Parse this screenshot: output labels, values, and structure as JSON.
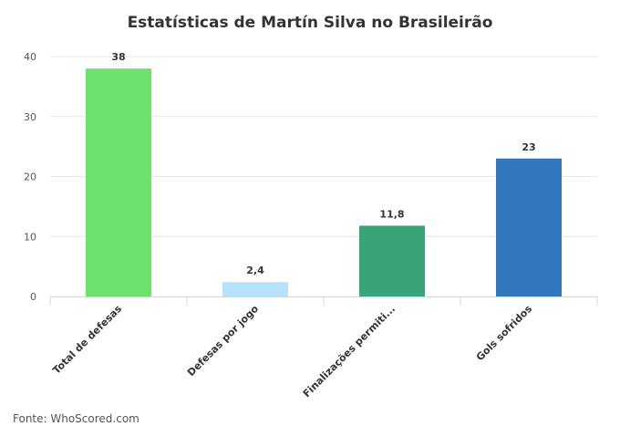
{
  "chart_data": {
    "type": "bar",
    "title": "Estatísticas de Martín Silva no Brasileirão",
    "xlabel": "",
    "ylabel": "",
    "categories": [
      "Total de defesas",
      "Defesas por jogo",
      "Finalizações permiti...",
      "Gols sofridos"
    ],
    "values": [
      38,
      2.4,
      11.8,
      23
    ],
    "data_labels": [
      "38",
      "2,4",
      "11,8",
      "23"
    ],
    "colors": [
      "#6ee06e",
      "#b5e3fb",
      "#38a478",
      "#3278be"
    ],
    "ylim": [
      0,
      40
    ],
    "yticks": [
      0,
      10,
      20,
      30,
      40
    ],
    "grid": true,
    "source": "Fonte: WhoScored.com"
  }
}
